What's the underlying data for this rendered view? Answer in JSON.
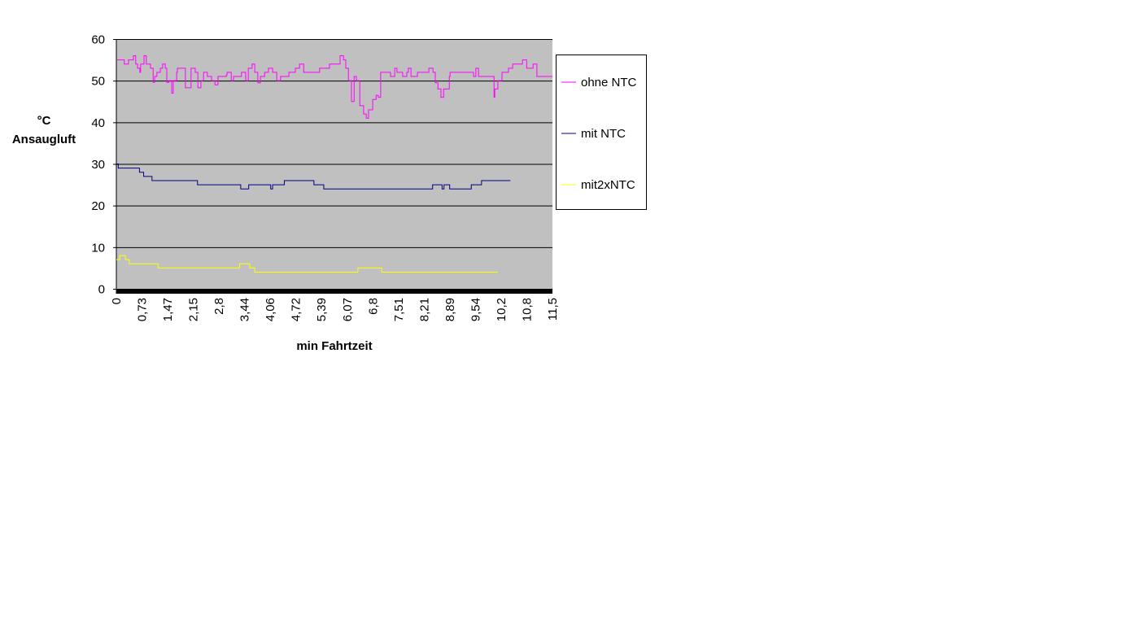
{
  "chart_data": {
    "type": "line",
    "title": "",
    "xlabel": "min Fahrtzeit",
    "ylabel_lines": [
      "°C",
      "Ansaugluft"
    ],
    "xlim": [
      0,
      11.5
    ],
    "ylim": [
      0,
      60
    ],
    "yticks": [
      0,
      10,
      20,
      30,
      40,
      50,
      60
    ],
    "xtick_labels": [
      "0",
      "0,73",
      "1,47",
      "2,15",
      "2,8",
      "3,44",
      "4,06",
      "4,72",
      "5,39",
      "6,07",
      "6,8",
      "7,51",
      "8,21",
      "8,89",
      "9,54",
      "10,2",
      "10,8",
      "11,5"
    ],
    "grid": "horizontal",
    "legend_position": "right",
    "plot_background": "#C0C0C0",
    "series": [
      {
        "name": "ohne NTC",
        "color": "#FF00FF",
        "points": [
          [
            0,
            55
          ],
          [
            0.21,
            54
          ],
          [
            0.32,
            55
          ],
          [
            0.45,
            56
          ],
          [
            0.51,
            54
          ],
          [
            0.56,
            53
          ],
          [
            0.62,
            52
          ],
          [
            0.64,
            54
          ],
          [
            0.73,
            56
          ],
          [
            0.79,
            54
          ],
          [
            0.9,
            53
          ],
          [
            0.97,
            49.6
          ],
          [
            1.01,
            51
          ],
          [
            1.07,
            52
          ],
          [
            1.16,
            53
          ],
          [
            1.22,
            54
          ],
          [
            1.29,
            53
          ],
          [
            1.33,
            49.6
          ],
          [
            1.39,
            50
          ],
          [
            1.46,
            47
          ],
          [
            1.5,
            50
          ],
          [
            1.59,
            52
          ],
          [
            1.61,
            53
          ],
          [
            1.8,
            53
          ],
          [
            1.82,
            48.3
          ],
          [
            1.91,
            48.3
          ],
          [
            1.97,
            53
          ],
          [
            2.08,
            52
          ],
          [
            2.15,
            48.3
          ],
          [
            2.23,
            50
          ],
          [
            2.3,
            52
          ],
          [
            2.4,
            51
          ],
          [
            2.51,
            50
          ],
          [
            2.6,
            49
          ],
          [
            2.68,
            51
          ],
          [
            2.9,
            51.4
          ],
          [
            2.92,
            52
          ],
          [
            3.03,
            50
          ],
          [
            3.09,
            51
          ],
          [
            3.26,
            51
          ],
          [
            3.3,
            52
          ],
          [
            3.41,
            50
          ],
          [
            3.48,
            53
          ],
          [
            3.58,
            54
          ],
          [
            3.65,
            52
          ],
          [
            3.73,
            49.5
          ],
          [
            3.8,
            51
          ],
          [
            3.91,
            52
          ],
          [
            4.01,
            53
          ],
          [
            4.12,
            52
          ],
          [
            4.23,
            50
          ],
          [
            4.33,
            51
          ],
          [
            4.55,
            52
          ],
          [
            4.72,
            53
          ],
          [
            4.83,
            54
          ],
          [
            4.94,
            52
          ],
          [
            5.36,
            53
          ],
          [
            5.62,
            54
          ],
          [
            5.9,
            56
          ],
          [
            5.99,
            55
          ],
          [
            6.05,
            53
          ],
          [
            6.12,
            50
          ],
          [
            6.2,
            45
          ],
          [
            6.27,
            51
          ],
          [
            6.33,
            50
          ],
          [
            6.42,
            44
          ],
          [
            6.52,
            42
          ],
          [
            6.59,
            41
          ],
          [
            6.65,
            43
          ],
          [
            6.76,
            45.5
          ],
          [
            6.85,
            46.5
          ],
          [
            6.91,
            46
          ],
          [
            6.97,
            52
          ],
          [
            7.23,
            51
          ],
          [
            7.34,
            53
          ],
          [
            7.4,
            52
          ],
          [
            7.55,
            51
          ],
          [
            7.66,
            52
          ],
          [
            7.7,
            53
          ],
          [
            7.77,
            51
          ],
          [
            7.94,
            52
          ],
          [
            8.24,
            53
          ],
          [
            8.35,
            52
          ],
          [
            8.41,
            49.5
          ],
          [
            8.48,
            48
          ],
          [
            8.56,
            46
          ],
          [
            8.63,
            48
          ],
          [
            8.78,
            51
          ],
          [
            8.8,
            52
          ],
          [
            9.33,
            52
          ],
          [
            9.42,
            51
          ],
          [
            9.48,
            53
          ],
          [
            9.55,
            51
          ],
          [
            9.91,
            51
          ],
          [
            9.96,
            46
          ],
          [
            9.98,
            48
          ],
          [
            10.06,
            50
          ],
          [
            10.17,
            52
          ],
          [
            10.34,
            53
          ],
          [
            10.45,
            54
          ],
          [
            10.71,
            55
          ],
          [
            10.82,
            53
          ],
          [
            10.99,
            54
          ],
          [
            11.09,
            51
          ],
          [
            11.5,
            51
          ]
        ]
      },
      {
        "name": "mit NTC",
        "color": "#000080",
        "points": [
          [
            0,
            30
          ],
          [
            0.05,
            29
          ],
          [
            0.61,
            28
          ],
          [
            0.72,
            27
          ],
          [
            0.94,
            26
          ],
          [
            2.14,
            25
          ],
          [
            3.28,
            24
          ],
          [
            3.49,
            25
          ],
          [
            4.07,
            24
          ],
          [
            4.12,
            25
          ],
          [
            4.43,
            26
          ],
          [
            5.21,
            25
          ],
          [
            5.47,
            24
          ],
          [
            8.34,
            25
          ],
          [
            8.59,
            24
          ],
          [
            8.64,
            25
          ],
          [
            8.79,
            24
          ],
          [
            9.36,
            25
          ],
          [
            9.63,
            26
          ],
          [
            10.39,
            26
          ]
        ]
      },
      {
        "name": "mit2xNTC",
        "color": "#FFFF00",
        "points": [
          [
            0,
            7
          ],
          [
            0.09,
            8
          ],
          [
            0.24,
            7
          ],
          [
            0.34,
            6
          ],
          [
            1.1,
            5
          ],
          [
            3.25,
            6
          ],
          [
            3.52,
            5
          ],
          [
            3.65,
            4
          ],
          [
            6.37,
            5
          ],
          [
            7.0,
            4
          ],
          [
            10.06,
            4
          ]
        ]
      }
    ]
  }
}
